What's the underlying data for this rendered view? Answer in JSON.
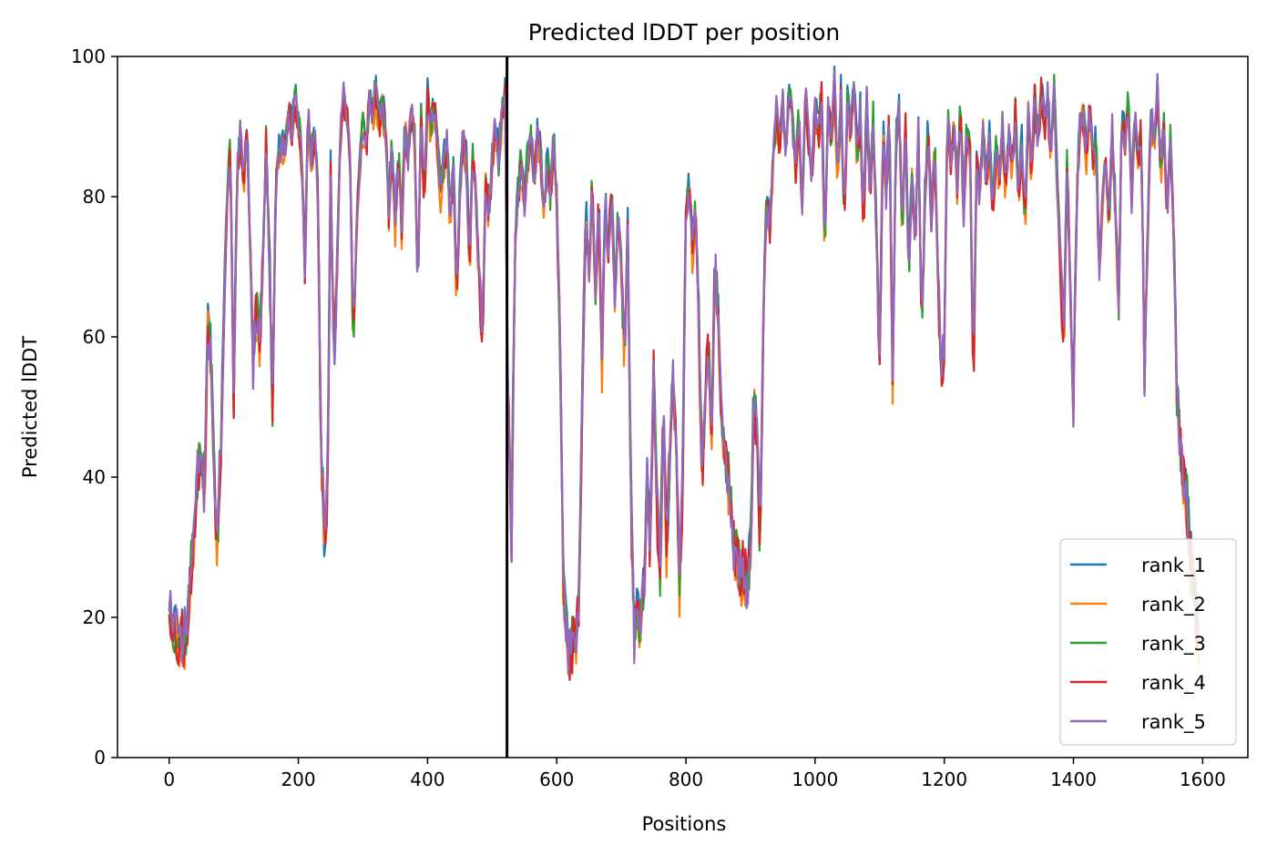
{
  "chart_data": {
    "type": "line",
    "title": "Predicted lDDT per position",
    "xlabel": "Positions",
    "ylabel": "Predicted lDDT",
    "xlim": [
      -80,
      1670
    ],
    "ylim": [
      0,
      100
    ],
    "xticks": [
      0,
      200,
      400,
      600,
      800,
      1000,
      1200,
      1400,
      1600
    ],
    "yticks": [
      0,
      20,
      40,
      60,
      80,
      100
    ],
    "grid": false,
    "legend": "lower-right",
    "vline": {
      "x": 523,
      "color": "#000000"
    },
    "profile": [
      [
        0,
        23
      ],
      [
        5,
        20
      ],
      [
        10,
        18
      ],
      [
        15,
        16
      ],
      [
        20,
        18
      ],
      [
        25,
        17
      ],
      [
        30,
        22
      ],
      [
        40,
        35
      ],
      [
        48,
        44
      ],
      [
        55,
        38
      ],
      [
        60,
        62
      ],
      [
        65,
        57
      ],
      [
        70,
        40
      ],
      [
        75,
        30
      ],
      [
        80,
        45
      ],
      [
        90,
        82
      ],
      [
        95,
        87
      ],
      [
        100,
        50
      ],
      [
        105,
        83
      ],
      [
        110,
        89
      ],
      [
        115,
        82
      ],
      [
        120,
        90
      ],
      [
        125,
        76
      ],
      [
        130,
        56
      ],
      [
        135,
        65
      ],
      [
        140,
        58
      ],
      [
        145,
        70
      ],
      [
        150,
        88
      ],
      [
        155,
        72
      ],
      [
        160,
        50
      ],
      [
        165,
        82
      ],
      [
        170,
        86
      ],
      [
        180,
        88
      ],
      [
        185,
        93
      ],
      [
        190,
        89
      ],
      [
        195,
        94
      ],
      [
        200,
        91
      ],
      [
        205,
        86
      ],
      [
        210,
        70
      ],
      [
        215,
        92
      ],
      [
        220,
        85
      ],
      [
        225,
        90
      ],
      [
        230,
        80
      ],
      [
        235,
        45
      ],
      [
        240,
        32
      ],
      [
        245,
        38
      ],
      [
        250,
        84
      ],
      [
        255,
        56
      ],
      [
        260,
        70
      ],
      [
        265,
        88
      ],
      [
        270,
        94
      ],
      [
        275,
        93
      ],
      [
        280,
        85
      ],
      [
        285,
        60
      ],
      [
        290,
        75
      ],
      [
        295,
        85
      ],
      [
        300,
        90
      ],
      [
        305,
        87
      ],
      [
        310,
        94
      ],
      [
        315,
        92
      ],
      [
        320,
        95
      ],
      [
        325,
        90
      ],
      [
        330,
        93
      ],
      [
        335,
        89
      ],
      [
        340,
        78
      ],
      [
        345,
        88
      ],
      [
        350,
        76
      ],
      [
        355,
        86
      ],
      [
        360,
        75
      ],
      [
        365,
        90
      ],
      [
        370,
        86
      ],
      [
        375,
        93
      ],
      [
        380,
        88
      ],
      [
        385,
        66
      ],
      [
        390,
        92
      ],
      [
        395,
        80
      ],
      [
        400,
        94
      ],
      [
        405,
        90
      ],
      [
        410,
        93
      ],
      [
        415,
        89
      ],
      [
        420,
        80
      ],
      [
        425,
        85
      ],
      [
        430,
        88
      ],
      [
        435,
        77
      ],
      [
        440,
        85
      ],
      [
        445,
        65
      ],
      [
        450,
        80
      ],
      [
        455,
        89
      ],
      [
        460,
        85
      ],
      [
        465,
        70
      ],
      [
        470,
        86
      ],
      [
        475,
        80
      ],
      [
        480,
        68
      ],
      [
        485,
        60
      ],
      [
        490,
        82
      ],
      [
        495,
        78
      ],
      [
        500,
        85
      ],
      [
        505,
        90
      ],
      [
        510,
        85
      ],
      [
        515,
        92
      ],
      [
        520,
        94
      ],
      [
        524,
        55
      ],
      [
        530,
        32
      ],
      [
        535,
        72
      ],
      [
        540,
        80
      ],
      [
        545,
        85
      ],
      [
        550,
        79
      ],
      [
        555,
        86
      ],
      [
        560,
        88
      ],
      [
        565,
        83
      ],
      [
        570,
        89
      ],
      [
        575,
        86
      ],
      [
        580,
        78
      ],
      [
        585,
        85
      ],
      [
        590,
        80
      ],
      [
        595,
        88
      ],
      [
        600,
        80
      ],
      [
        605,
        60
      ],
      [
        610,
        25
      ],
      [
        615,
        17
      ],
      [
        620,
        15
      ],
      [
        625,
        16
      ],
      [
        630,
        18
      ],
      [
        635,
        24
      ],
      [
        640,
        55
      ],
      [
        645,
        78
      ],
      [
        650,
        70
      ],
      [
        655,
        82
      ],
      [
        660,
        66
      ],
      [
        665,
        80
      ],
      [
        670,
        56
      ],
      [
        675,
        80
      ],
      [
        680,
        72
      ],
      [
        685,
        82
      ],
      [
        690,
        66
      ],
      [
        695,
        78
      ],
      [
        700,
        70
      ],
      [
        705,
        56
      ],
      [
        710,
        76
      ],
      [
        715,
        36
      ],
      [
        720,
        17
      ],
      [
        725,
        20
      ],
      [
        730,
        18
      ],
      [
        735,
        24
      ],
      [
        740,
        40
      ],
      [
        745,
        30
      ],
      [
        750,
        55
      ],
      [
        755,
        36
      ],
      [
        760,
        26
      ],
      [
        765,
        50
      ],
      [
        770,
        30
      ],
      [
        775,
        42
      ],
      [
        780,
        55
      ],
      [
        785,
        44
      ],
      [
        790,
        24
      ],
      [
        795,
        40
      ],
      [
        800,
        78
      ],
      [
        805,
        82
      ],
      [
        810,
        72
      ],
      [
        815,
        78
      ],
      [
        820,
        62
      ],
      [
        825,
        40
      ],
      [
        830,
        52
      ],
      [
        835,
        60
      ],
      [
        840,
        45
      ],
      [
        845,
        72
      ],
      [
        850,
        62
      ],
      [
        855,
        48
      ],
      [
        860,
        44
      ],
      [
        865,
        40
      ],
      [
        870,
        35
      ],
      [
        875,
        30
      ],
      [
        880,
        28
      ],
      [
        885,
        25
      ],
      [
        890,
        28
      ],
      [
        895,
        25
      ],
      [
        900,
        30
      ],
      [
        905,
        52
      ],
      [
        910,
        45
      ],
      [
        915,
        30
      ],
      [
        920,
        65
      ],
      [
        925,
        80
      ],
      [
        930,
        76
      ],
      [
        935,
        85
      ],
      [
        940,
        92
      ],
      [
        945,
        88
      ],
      [
        950,
        93
      ],
      [
        955,
        86
      ],
      [
        960,
        95
      ],
      [
        965,
        90
      ],
      [
        970,
        84
      ],
      [
        975,
        92
      ],
      [
        980,
        78
      ],
      [
        985,
        95
      ],
      [
        990,
        88
      ],
      [
        995,
        83
      ],
      [
        1000,
        93
      ],
      [
        1005,
        88
      ],
      [
        1010,
        95
      ],
      [
        1015,
        72
      ],
      [
        1020,
        94
      ],
      [
        1025,
        88
      ],
      [
        1030,
        96
      ],
      [
        1035,
        82
      ],
      [
        1040,
        95
      ],
      [
        1045,
        77
      ],
      [
        1050,
        93
      ],
      [
        1055,
        90
      ],
      [
        1060,
        96
      ],
      [
        1065,
        86
      ],
      [
        1070,
        92
      ],
      [
        1075,
        76
      ],
      [
        1080,
        94
      ],
      [
        1085,
        80
      ],
      [
        1090,
        91
      ],
      [
        1095,
        75
      ],
      [
        1100,
        56
      ],
      [
        1105,
        90
      ],
      [
        1110,
        80
      ],
      [
        1115,
        92
      ],
      [
        1120,
        54
      ],
      [
        1125,
        88
      ],
      [
        1130,
        92
      ],
      [
        1135,
        75
      ],
      [
        1140,
        90
      ],
      [
        1145,
        68
      ],
      [
        1150,
        84
      ],
      [
        1155,
        72
      ],
      [
        1160,
        89
      ],
      [
        1165,
        60
      ],
      [
        1170,
        80
      ],
      [
        1175,
        90
      ],
      [
        1180,
        76
      ],
      [
        1185,
        88
      ],
      [
        1190,
        70
      ],
      [
        1195,
        55
      ],
      [
        1200,
        58
      ],
      [
        1205,
        92
      ],
      [
        1210,
        85
      ],
      [
        1215,
        90
      ],
      [
        1220,
        82
      ],
      [
        1225,
        93
      ],
      [
        1230,
        78
      ],
      [
        1235,
        90
      ],
      [
        1240,
        86
      ],
      [
        1245,
        52
      ],
      [
        1250,
        85
      ],
      [
        1255,
        80
      ],
      [
        1260,
        90
      ],
      [
        1265,
        82
      ],
      [
        1270,
        88
      ],
      [
        1275,
        78
      ],
      [
        1280,
        86
      ],
      [
        1285,
        82
      ],
      [
        1290,
        90
      ],
      [
        1295,
        80
      ],
      [
        1300,
        88
      ],
      [
        1305,
        84
      ],
      [
        1310,
        92
      ],
      [
        1315,
        80
      ],
      [
        1320,
        88
      ],
      [
        1325,
        76
      ],
      [
        1330,
        92
      ],
      [
        1335,
        84
      ],
      [
        1340,
        94
      ],
      [
        1345,
        88
      ],
      [
        1350,
        95
      ],
      [
        1355,
        90
      ],
      [
        1360,
        94
      ],
      [
        1365,
        86
      ],
      [
        1370,
        95
      ],
      [
        1375,
        82
      ],
      [
        1380,
        70
      ],
      [
        1385,
        58
      ],
      [
        1390,
        85
      ],
      [
        1395,
        66
      ],
      [
        1400,
        50
      ],
      [
        1405,
        80
      ],
      [
        1410,
        90
      ],
      [
        1415,
        92
      ],
      [
        1420,
        86
      ],
      [
        1425,
        93
      ],
      [
        1430,
        85
      ],
      [
        1435,
        88
      ],
      [
        1440,
        70
      ],
      [
        1445,
        80
      ],
      [
        1450,
        86
      ],
      [
        1455,
        76
      ],
      [
        1460,
        90
      ],
      [
        1465,
        78
      ],
      [
        1470,
        65
      ],
      [
        1475,
        92
      ],
      [
        1480,
        88
      ],
      [
        1485,
        94
      ],
      [
        1490,
        80
      ],
      [
        1495,
        92
      ],
      [
        1500,
        85
      ],
      [
        1505,
        90
      ],
      [
        1510,
        55
      ],
      [
        1515,
        75
      ],
      [
        1520,
        92
      ],
      [
        1525,
        88
      ],
      [
        1530,
        95
      ],
      [
        1535,
        84
      ],
      [
        1540,
        90
      ],
      [
        1545,
        78
      ],
      [
        1550,
        88
      ],
      [
        1555,
        76
      ],
      [
        1560,
        52
      ],
      [
        1565,
        45
      ],
      [
        1570,
        40
      ],
      [
        1575,
        38
      ],
      [
        1580,
        30
      ],
      [
        1585,
        26
      ],
      [
        1590,
        20
      ],
      [
        1594,
        18
      ]
    ],
    "series": [
      {
        "name": "rank_1",
        "color": "#1f77b4",
        "offset": 0.6,
        "seed": 11
      },
      {
        "name": "rank_2",
        "color": "#ff7f0e",
        "offset": -0.8,
        "seed": 23
      },
      {
        "name": "rank_3",
        "color": "#2ca02c",
        "offset": 0.3,
        "seed": 37
      },
      {
        "name": "rank_4",
        "color": "#d62728",
        "offset": -0.4,
        "seed": 53
      },
      {
        "name": "rank_5",
        "color": "#9467bd",
        "offset": 0.0,
        "seed": 71
      }
    ]
  }
}
